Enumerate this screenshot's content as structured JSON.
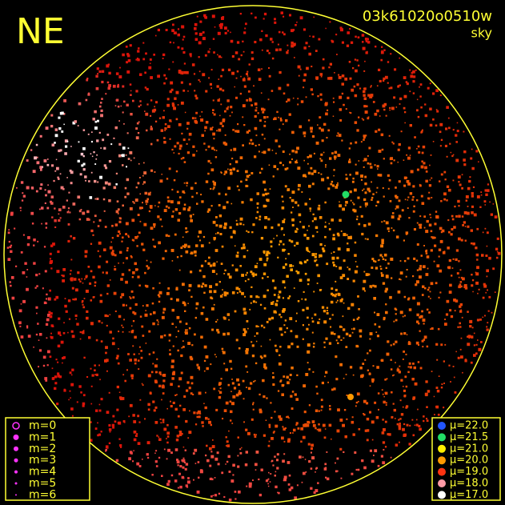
{
  "header": {
    "direction": "NE",
    "frame_id": "03k61020o0510w",
    "kind": "sky"
  },
  "legend_magnitude": {
    "entries": [
      "m=0",
      "m=1",
      "m=2",
      "m=3",
      "m=4",
      "m=5",
      "m=6"
    ],
    "color": "#ff33ff"
  },
  "legend_brightness": {
    "entries": [
      {
        "label": "μ=22.0",
        "color": "#2255ff"
      },
      {
        "label": "μ=21.5",
        "color": "#22dd66"
      },
      {
        "label": "μ=21.0",
        "color": "#ffee00"
      },
      {
        "label": "μ=20.0",
        "color": "#ff9900"
      },
      {
        "label": "μ=19.0",
        "color": "#ff3311"
      },
      {
        "label": "μ=18.0",
        "color": "#ff9aa6"
      },
      {
        "label": "μ=17.0",
        "color": "#ffffff"
      }
    ]
  }
}
